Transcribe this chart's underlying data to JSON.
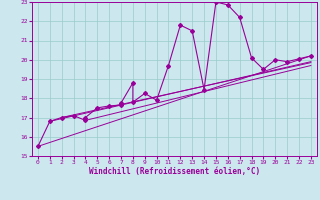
{
  "xlabel": "Windchill (Refroidissement éolien,°C)",
  "background_color": "#cce8ee",
  "line_color": "#990099",
  "grid_color": "#99cccc",
  "xlim": [
    -0.5,
    23.5
  ],
  "ylim": [
    15,
    23
  ],
  "yticks": [
    15,
    16,
    17,
    18,
    19,
    20,
    21,
    22,
    23
  ],
  "xticks": [
    0,
    1,
    2,
    3,
    4,
    5,
    6,
    7,
    8,
    9,
    10,
    11,
    12,
    13,
    14,
    15,
    16,
    17,
    18,
    19,
    20,
    21,
    22,
    23
  ],
  "series": [
    [
      0,
      15.5
    ],
    [
      1,
      16.8
    ],
    [
      2,
      17.0
    ],
    [
      3,
      17.1
    ],
    [
      4,
      16.85
    ],
    [
      4,
      17.0
    ],
    [
      5,
      17.5
    ],
    [
      6,
      17.6
    ],
    [
      7,
      17.65
    ],
    [
      7,
      17.7
    ],
    [
      7,
      17.75
    ],
    [
      8,
      18.8
    ],
    [
      8,
      17.8
    ],
    [
      9,
      18.25
    ],
    [
      10,
      17.9
    ],
    [
      11,
      19.7
    ],
    [
      12,
      21.8
    ],
    [
      13,
      21.5
    ],
    [
      14,
      18.45
    ],
    [
      15,
      23.0
    ],
    [
      16,
      22.85
    ],
    [
      17,
      22.2
    ],
    [
      18,
      20.1
    ],
    [
      19,
      19.5
    ],
    [
      20,
      20.0
    ],
    [
      21,
      19.9
    ],
    [
      22,
      20.05
    ],
    [
      23,
      20.2
    ]
  ],
  "diag1": {
    "x": [
      0,
      23
    ],
    "y": [
      15.5,
      20.2
    ]
  },
  "diag2": {
    "x": [
      1,
      23
    ],
    "y": [
      16.8,
      19.9
    ]
  },
  "diag3": {
    "x": [
      2,
      23
    ],
    "y": [
      17.0,
      19.85
    ]
  },
  "diag4": {
    "x": [
      4,
      23
    ],
    "y": [
      16.85,
      19.7
    ]
  }
}
